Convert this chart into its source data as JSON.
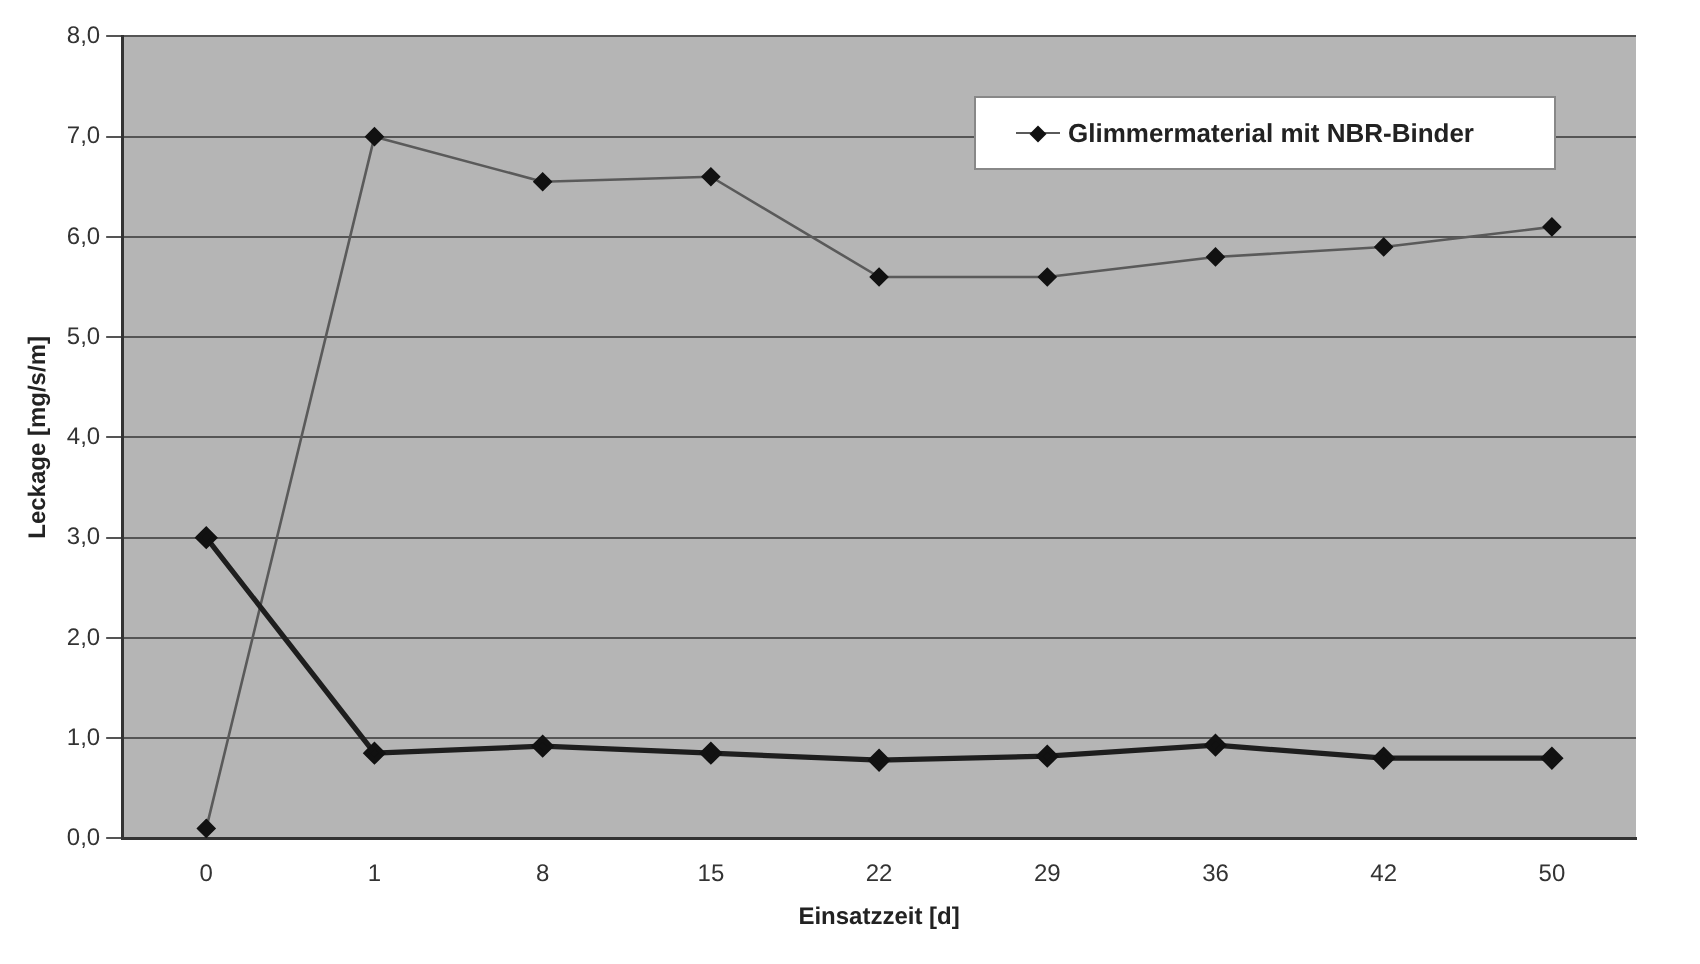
{
  "chart_data": {
    "type": "line",
    "xlabel": "Einsatzzeit [d]",
    "ylabel": "Leckage [mg/s/m]",
    "categories": [
      "0",
      "1",
      "8",
      "15",
      "22",
      "29",
      "36",
      "42",
      "50"
    ],
    "series": [
      {
        "color": "#1e1e1e",
        "values": [
          3.0,
          0.85,
          0.92,
          0.85,
          0.78,
          0.82,
          0.93,
          0.8,
          0.8
        ]
      },
      {
        "name": "Glimmermaterial mit NBR-Binder",
        "color": "#5a5a5a",
        "values": [
          0.1,
          7.0,
          6.55,
          6.6,
          5.6,
          5.6,
          5.8,
          5.9,
          6.1
        ]
      }
    ],
    "ylim": [
      0,
      8
    ],
    "yticks": [
      {
        "value": 0,
        "label": "0,0"
      },
      {
        "value": 1,
        "label": "1,0"
      },
      {
        "value": 2,
        "label": "2,0"
      },
      {
        "value": 3,
        "label": "3,0"
      },
      {
        "value": 4,
        "label": "4,0"
      },
      {
        "value": 5,
        "label": "5,0"
      },
      {
        "value": 6,
        "label": "6,0"
      },
      {
        "value": 7,
        "label": "7,0"
      },
      {
        "value": 8,
        "label": "8,0"
      }
    ],
    "grid": "y",
    "legend": "top right",
    "marker": "diamond",
    "line_style": "solid"
  }
}
